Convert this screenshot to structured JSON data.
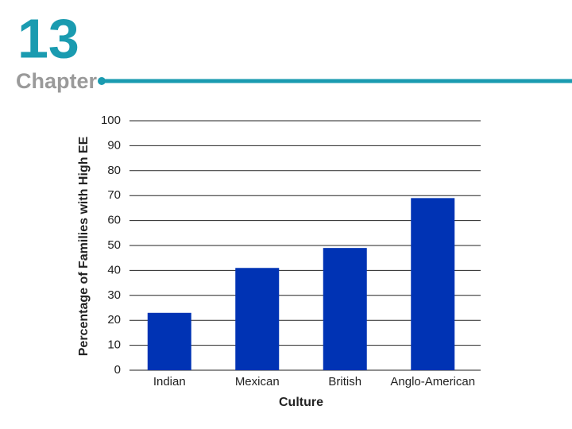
{
  "header": {
    "number": "13",
    "label": "Chapter"
  },
  "chart_data": {
    "type": "bar",
    "categories": [
      "Indian",
      "Mexican",
      "British",
      "Anglo-American"
    ],
    "values": [
      23,
      41,
      49,
      69
    ],
    "color": "#0033b4",
    "x_label": "Culture",
    "y_label": "Percentage of Families with High EE",
    "ylim": [
      0,
      100
    ],
    "yticks": [
      0,
      10,
      20,
      30,
      40,
      50,
      60,
      70,
      80,
      90,
      100
    ],
    "grid": true
  }
}
